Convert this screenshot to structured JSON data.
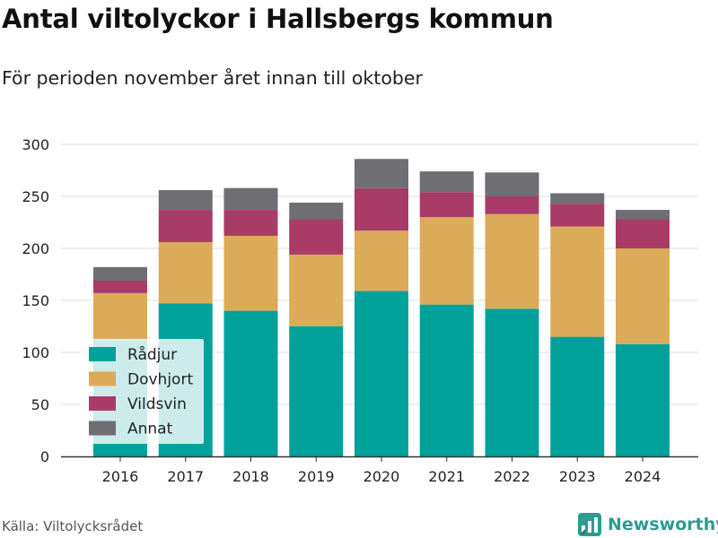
{
  "header": {
    "title": "Antal viltolyckor i Hallsbergs kommun",
    "subtitle": "För perioden november året innan till oktober"
  },
  "footer": {
    "source": "Källa: Viltolycksrådet",
    "brand": "Newsworthy",
    "brand_icon": "bar-chart-logo-icon",
    "brand_color": "#2a9d8f"
  },
  "chart_data": {
    "type": "bar",
    "stacked": true,
    "categories": [
      "2016",
      "2017",
      "2018",
      "2019",
      "2020",
      "2021",
      "2022",
      "2023",
      "2024"
    ],
    "series": [
      {
        "name": "Rådjur",
        "color": "#00a19a",
        "values": [
          112,
          147,
          140,
          125,
          159,
          146,
          142,
          115,
          108
        ]
      },
      {
        "name": "Dovhjort",
        "color": "#dbab5a",
        "values": [
          45,
          59,
          72,
          69,
          58,
          84,
          91,
          106,
          92
        ]
      },
      {
        "name": "Vildsvin",
        "color": "#a83c66",
        "values": [
          12,
          31,
          25,
          34,
          41,
          24,
          17,
          22,
          28
        ]
      },
      {
        "name": "Annat",
        "color": "#6e6e73",
        "values": [
          13,
          19,
          21,
          16,
          28,
          20,
          23,
          10,
          9
        ]
      }
    ],
    "ylim": [
      0,
      300
    ],
    "yticks": [
      "0",
      "50",
      "100",
      "150",
      "200",
      "250",
      "300"
    ],
    "grid": true,
    "legend": "bottom-left inside plot"
  }
}
